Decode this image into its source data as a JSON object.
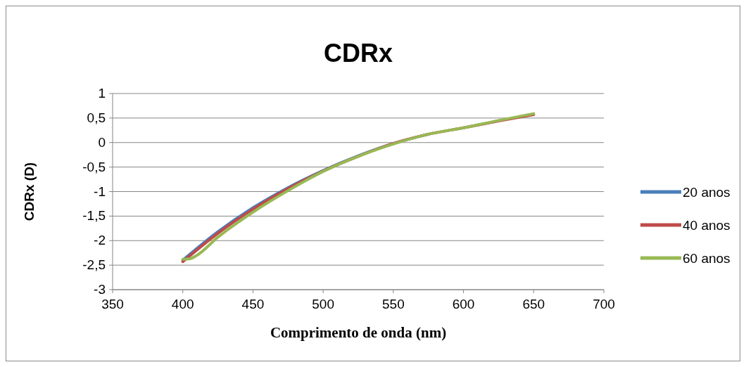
{
  "chart_data": {
    "type": "line",
    "title": "CDRx",
    "xlabel": "Comprimento de onda (nm)",
    "ylabel": "CDRx (D)",
    "xlim": [
      350,
      700
    ],
    "xticks": [
      350,
      400,
      450,
      500,
      550,
      600,
      650,
      700
    ],
    "ylim": [
      -3,
      1
    ],
    "yticks": [
      {
        "value": -3,
        "label": "-3"
      },
      {
        "value": -2.5,
        "label": "-2,5"
      },
      {
        "value": -2,
        "label": "-2"
      },
      {
        "value": -1.5,
        "label": "-1,5"
      },
      {
        "value": -1,
        "label": "-1"
      },
      {
        "value": -0.5,
        "label": "-0,5"
      },
      {
        "value": 0,
        "label": "0"
      },
      {
        "value": 0.5,
        "label": "0,5"
      },
      {
        "value": 1,
        "label": "1"
      }
    ],
    "grid": "y",
    "legend": "right",
    "marker": "none",
    "line_style": "solid",
    "series": [
      {
        "name": "20 anos",
        "color": "#4a7ebb",
        "x": [
          400,
          425,
          450,
          475,
          500,
          525,
          550,
          575
        ],
        "values": [
          -2.4,
          -1.82,
          -1.33,
          -0.92,
          -0.57,
          -0.27,
          -0.02,
          0.17
        ]
      },
      {
        "name": "40 anos",
        "color": "#be4b48",
        "x": [
          400,
          425,
          450,
          475,
          500,
          525,
          550,
          575,
          600,
          625,
          650
        ],
        "values": [
          -2.43,
          -1.85,
          -1.36,
          -0.94,
          -0.58,
          -0.28,
          -0.02,
          0.17,
          0.3,
          0.44,
          0.57
        ]
      },
      {
        "name": "60 anos",
        "color": "#98b954",
        "x": [
          400,
          405,
          410,
          425,
          450,
          475,
          500,
          525,
          550,
          575,
          600,
          625,
          650
        ],
        "values": [
          -2.38,
          -2.37,
          -2.3,
          -1.93,
          -1.42,
          -0.98,
          -0.59,
          -0.28,
          -0.03,
          0.17,
          0.3,
          0.45,
          0.59
        ]
      }
    ]
  }
}
